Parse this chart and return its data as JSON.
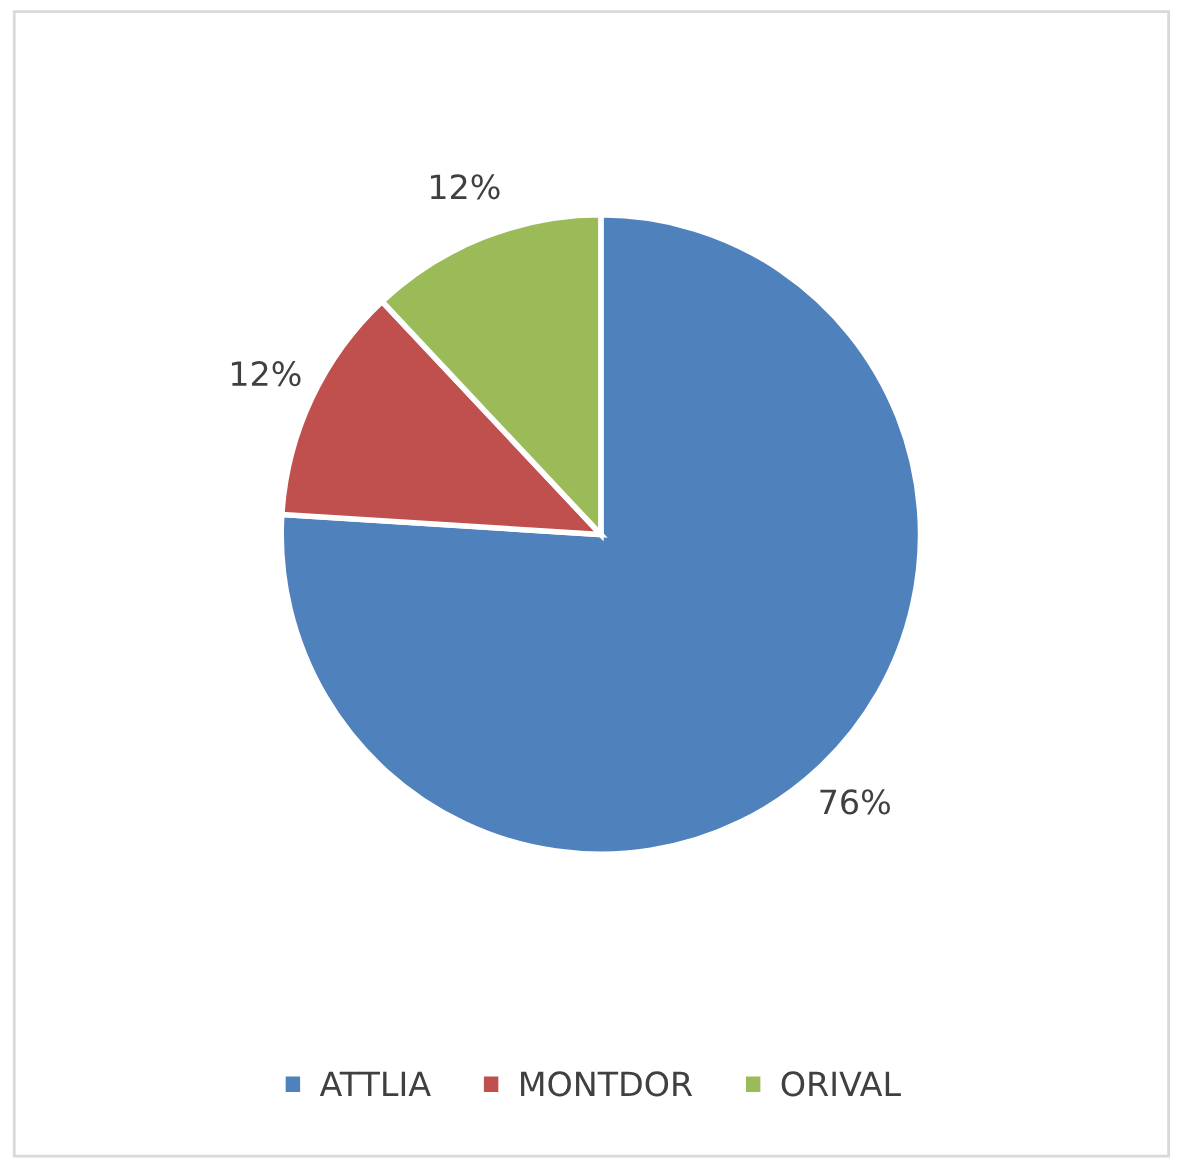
{
  "chart_data": {
    "type": "pie",
    "categories": [
      "ATTLIA",
      "MONTDOR",
      "ORIVAL"
    ],
    "values": [
      76,
      12,
      12
    ],
    "colors": [
      "#4f81bd",
      "#c0504d",
      "#9bbb59"
    ],
    "value_labels": [
      "76%",
      "12%",
      "12%"
    ],
    "legend": "bottom"
  }
}
